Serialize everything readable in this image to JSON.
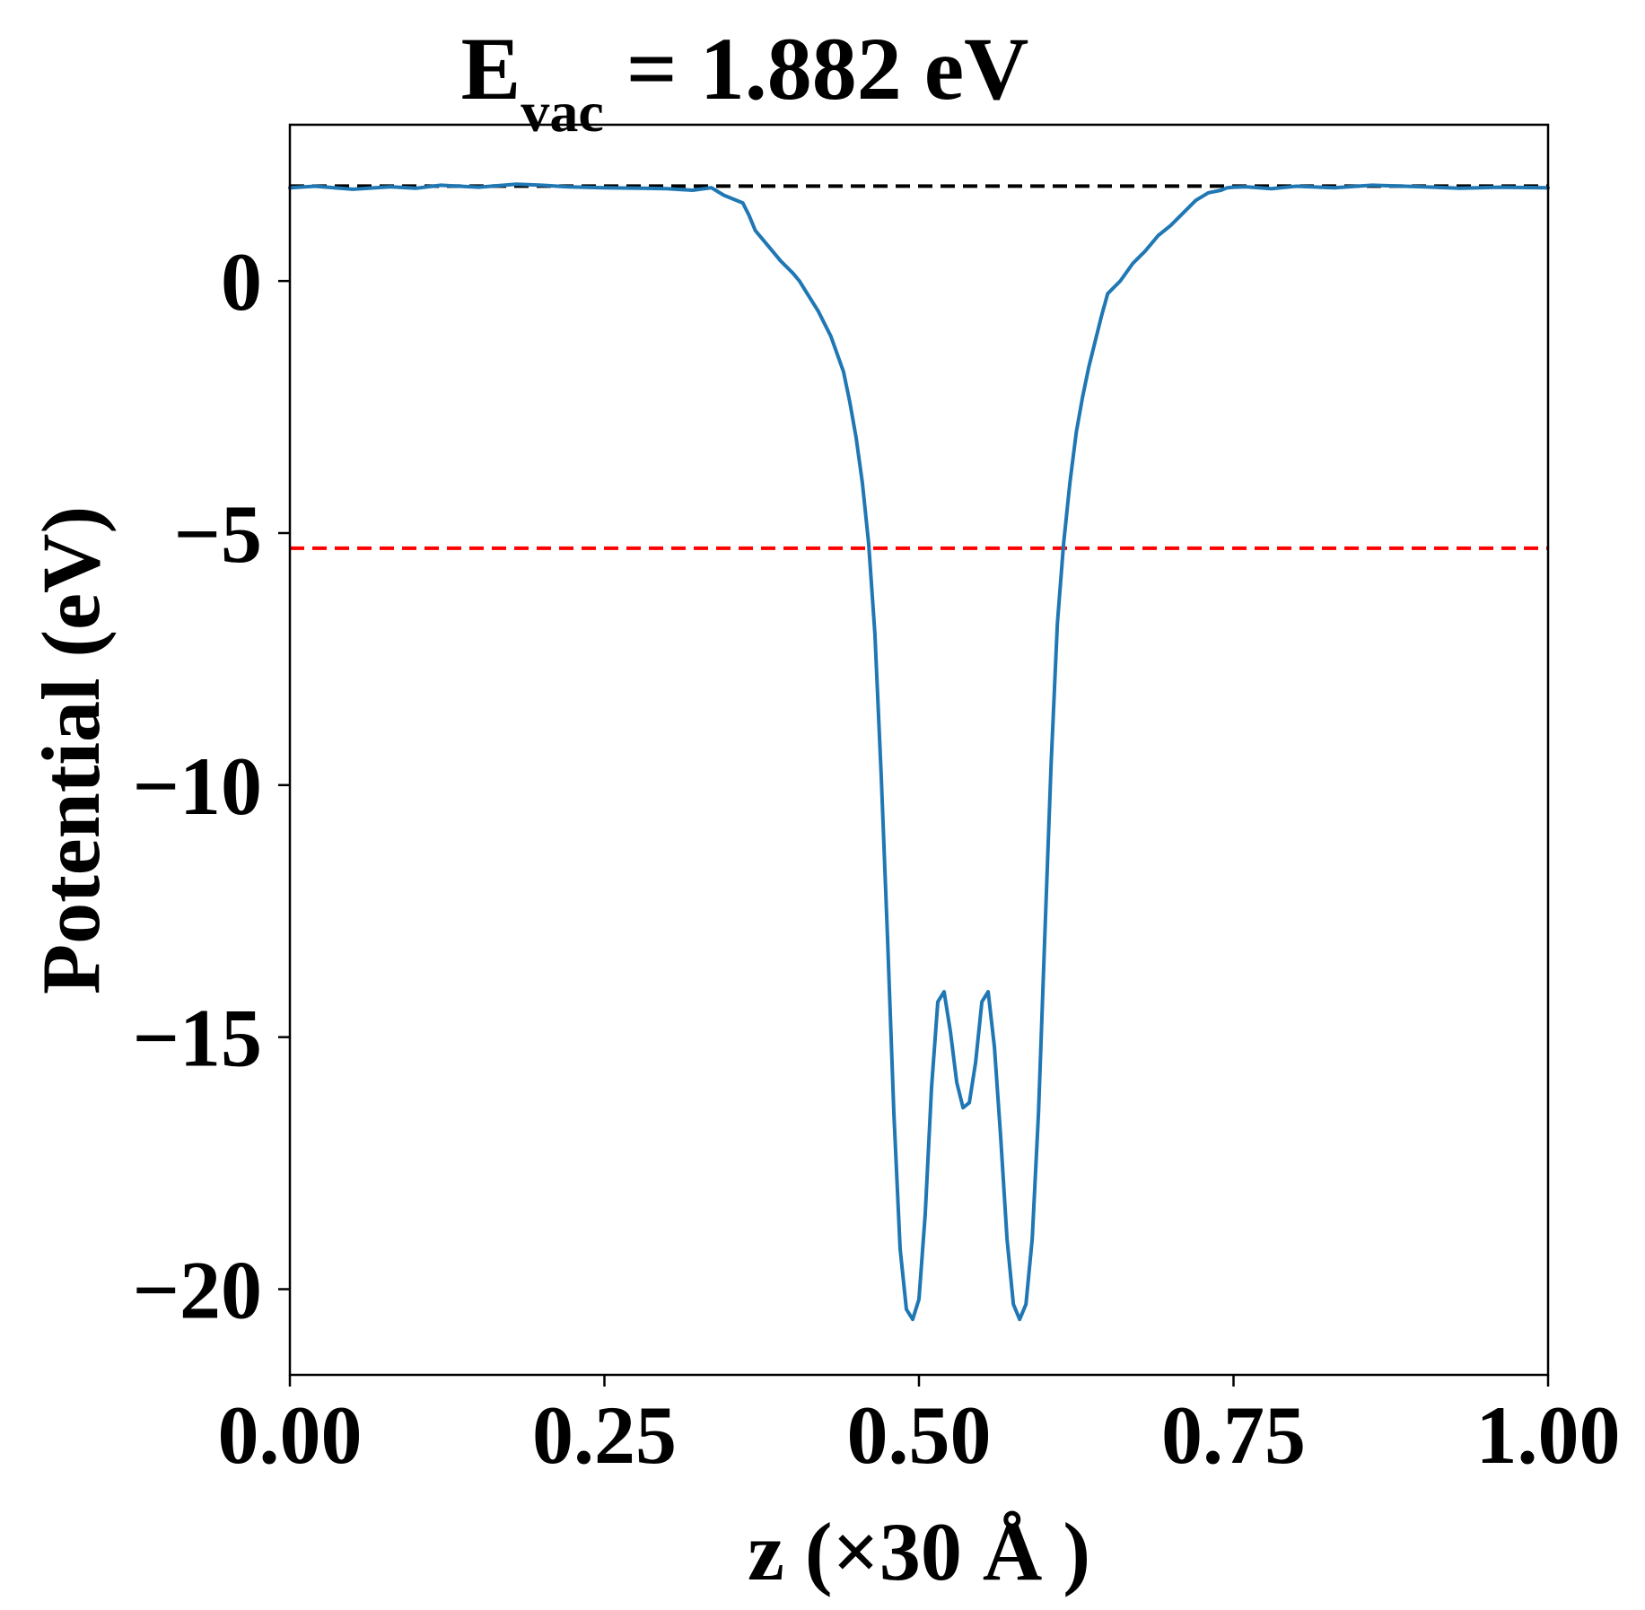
{
  "chart_data": {
    "type": "line",
    "title": {
      "main": "E",
      "subscript": "vac",
      "rest": " = 1.882 eV"
    },
    "xlabel": "z (×30 Å )",
    "ylabel": "Potential (eV)",
    "xlim": [
      0.0,
      1.0
    ],
    "ylim": [
      -21.7,
      3.1
    ],
    "xticks": [
      0.0,
      0.25,
      0.5,
      0.75,
      1.0
    ],
    "xtick_labels": [
      "0.00",
      "0.25",
      "0.50",
      "0.75",
      "1.00"
    ],
    "yticks": [
      0,
      -5,
      -10,
      -15,
      -20
    ],
    "ytick_labels": [
      "0",
      "−5",
      "−10",
      "−15",
      "−20"
    ],
    "grid": false,
    "reference_lines": [
      {
        "y": 1.882,
        "color": "#000000",
        "style": "dashed"
      },
      {
        "y": -5.3,
        "color": "#ff0000",
        "style": "dashed"
      }
    ],
    "series": [
      {
        "color": "#1f77b4",
        "x": [
          0.0,
          0.02,
          0.05,
          0.08,
          0.1,
          0.12,
          0.15,
          0.18,
          0.2,
          0.22,
          0.25,
          0.28,
          0.3,
          0.32,
          0.335,
          0.345,
          0.36,
          0.365,
          0.37,
          0.38,
          0.39,
          0.4,
          0.405,
          0.41,
          0.42,
          0.43,
          0.44,
          0.445,
          0.45,
          0.455,
          0.46,
          0.465,
          0.47,
          0.475,
          0.48,
          0.485,
          0.49,
          0.495,
          0.5,
          0.505,
          0.51,
          0.515,
          0.52,
          0.525,
          0.53,
          0.535,
          0.54,
          0.545,
          0.55,
          0.555,
          0.56,
          0.565,
          0.57,
          0.575,
          0.58,
          0.585,
          0.59,
          0.595,
          0.6,
          0.605,
          0.61,
          0.615,
          0.62,
          0.625,
          0.63,
          0.635,
          0.64,
          0.645,
          0.65,
          0.66,
          0.67,
          0.68,
          0.69,
          0.7,
          0.71,
          0.72,
          0.73,
          0.74,
          0.745,
          0.75,
          0.76,
          0.78,
          0.8,
          0.83,
          0.86,
          0.9,
          0.93,
          0.96,
          1.0
        ],
        "y": [
          1.85,
          1.88,
          1.82,
          1.87,
          1.84,
          1.9,
          1.86,
          1.92,
          1.9,
          1.87,
          1.85,
          1.84,
          1.83,
          1.8,
          1.85,
          1.7,
          1.55,
          1.3,
          1.0,
          0.7,
          0.4,
          0.15,
          0.0,
          -0.2,
          -0.6,
          -1.1,
          -1.8,
          -2.4,
          -3.1,
          -4.0,
          -5.2,
          -7.0,
          -9.8,
          -13.0,
          -16.5,
          -19.2,
          -20.4,
          -20.6,
          -20.2,
          -18.5,
          -16.0,
          -14.3,
          -14.1,
          -14.9,
          -15.9,
          -16.4,
          -16.3,
          -15.5,
          -14.3,
          -14.1,
          -15.2,
          -17.0,
          -19.0,
          -20.3,
          -20.6,
          -20.3,
          -19.0,
          -16.5,
          -13.0,
          -9.6,
          -6.8,
          -5.2,
          -4.0,
          -3.0,
          -2.3,
          -1.7,
          -1.2,
          -0.7,
          -0.25,
          0.0,
          0.35,
          0.6,
          0.9,
          1.1,
          1.35,
          1.6,
          1.75,
          1.8,
          1.85,
          1.86,
          1.87,
          1.83,
          1.88,
          1.85,
          1.9,
          1.87,
          1.84,
          1.86,
          1.85
        ]
      }
    ]
  }
}
